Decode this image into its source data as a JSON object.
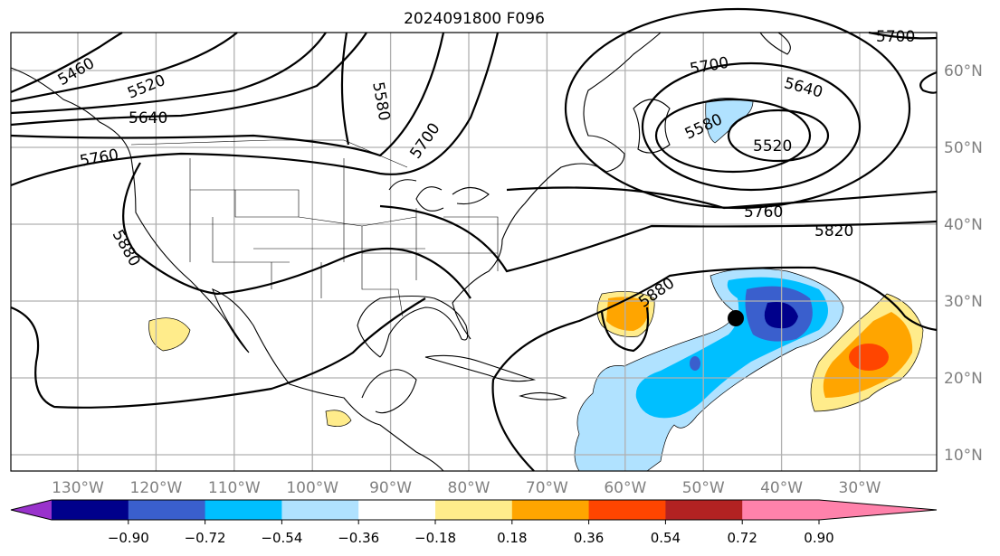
{
  "title": "2024091800 F096",
  "lat_labels": [
    "60°N",
    "50°N",
    "40°N",
    "30°N",
    "20°N",
    "10°N"
  ],
  "lon_labels": [
    "130°W",
    "120°W",
    "110°W",
    "100°W",
    "90°W",
    "80°W",
    "70°W",
    "60°W",
    "50°W",
    "40°W",
    "30°W"
  ],
  "contour_labels": {
    "c5460": "5460",
    "c5520": "5520",
    "c5580a": "5580",
    "c5640": "5640",
    "c5700a": "5700",
    "c5760a": "5760",
    "c5880a": "5880",
    "c5700b": "5700",
    "c5640b": "5640",
    "c5580b": "5580",
    "c5520b": "5520",
    "c5760b": "5760",
    "c5820": "5820",
    "c5880b": "5880",
    "c5700c": "5700"
  },
  "colorbar": {
    "ticks": [
      "−0.90",
      "−0.72",
      "−0.54",
      "−0.36",
      "−0.18",
      "0.18",
      "0.36",
      "0.54",
      "0.72",
      "0.90"
    ],
    "colors": [
      "#9932cc",
      "#00008b",
      "#3a5fcd",
      "#00bfff",
      "#b0e2ff",
      "#ffffff",
      "#ffec8b",
      "#ffa500",
      "#ff4500",
      "#b22222",
      "#ff82ab"
    ]
  },
  "storm_marker": "black-dot"
}
